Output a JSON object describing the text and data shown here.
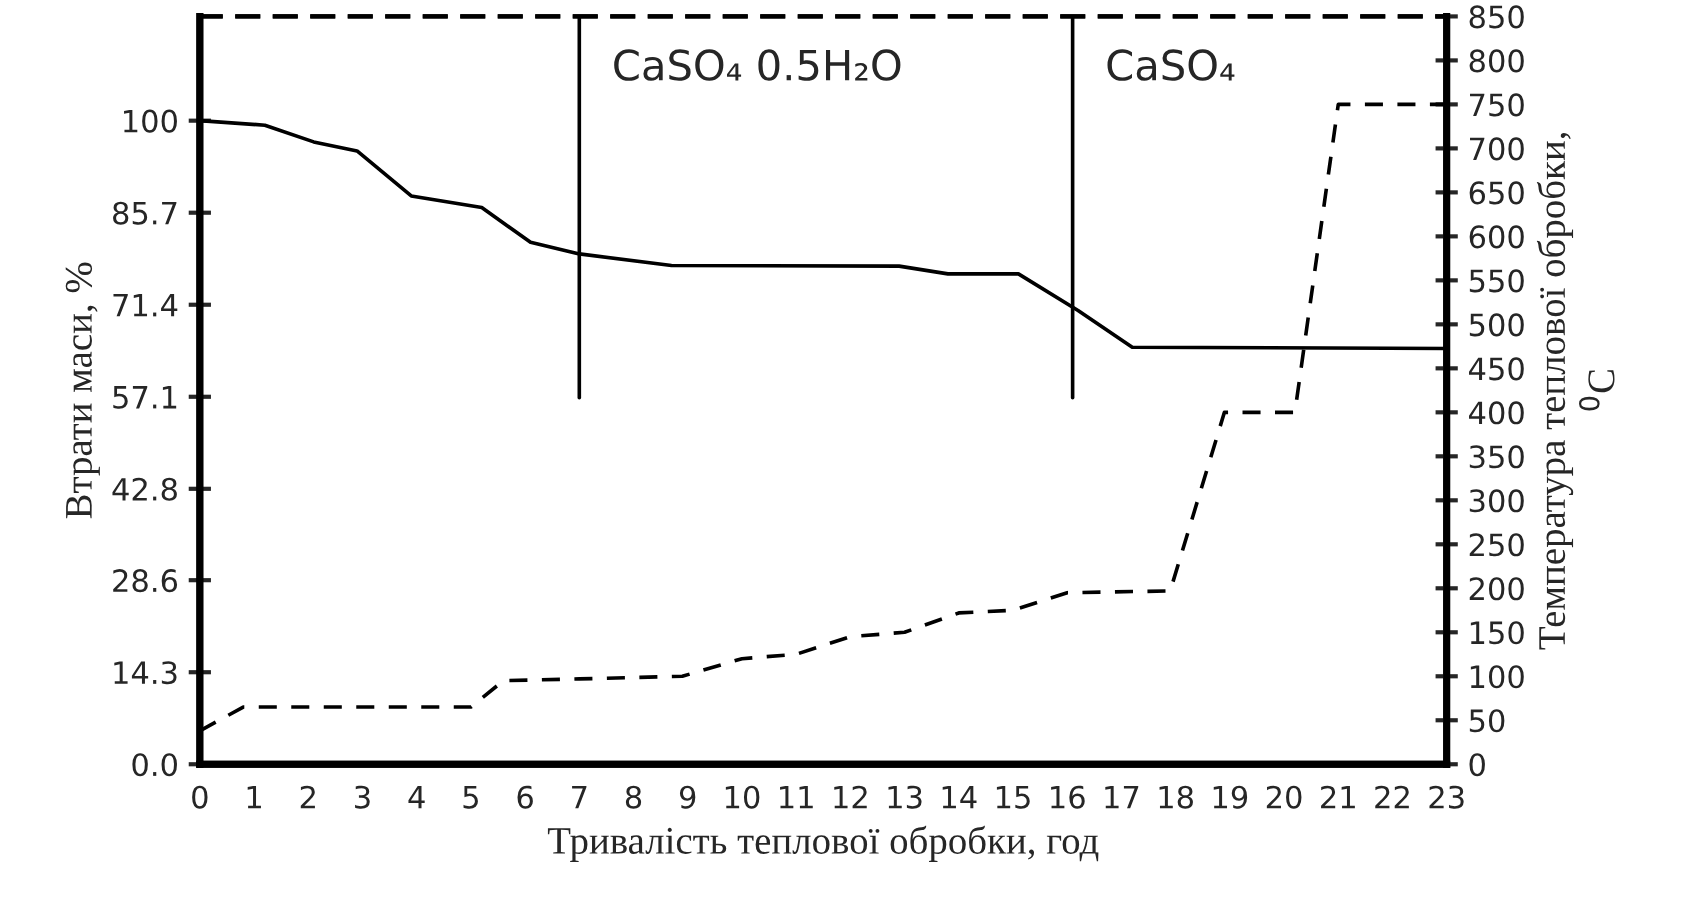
{
  "chart_data": {
    "type": "line",
    "xlabel": "Тривалість теплової обробки, год",
    "ylabel": "Втрати маси, %",
    "y2label": "Температура теплової обробки,\n$^{0}$C",
    "xlim": [
      0,
      23
    ],
    "xticks": [
      0,
      1,
      2,
      3,
      4,
      5,
      6,
      7,
      8,
      9,
      10,
      11,
      12,
      13,
      14,
      15,
      16,
      17,
      18,
      19,
      20,
      21,
      22,
      23
    ],
    "ylim": [
      0,
      116.2
    ],
    "yticks": [
      {
        "value": 0,
        "label": "0.0"
      },
      14.3,
      28.6,
      42.8,
      57.1,
      71.4,
      85.7,
      100
    ],
    "y2lim": [
      0,
      850
    ],
    "y2ticks": [
      0,
      50,
      100,
      150,
      200,
      250,
      300,
      350,
      400,
      450,
      500,
      550,
      600,
      650,
      700,
      750,
      800,
      850
    ],
    "grid": false,
    "legend": false,
    "marker": "none",
    "series": [
      {
        "color": "#000000",
        "line_style": "solid",
        "x": [
          0,
          1.2,
          2.1,
          2.9,
          3.9,
          5.2,
          6.1,
          7,
          8.7,
          12.9,
          13.8,
          15.1,
          16.2,
          17.2,
          23
        ],
        "values": [
          100,
          99.3,
          96.7,
          95.3,
          88.3,
          86.5,
          81.1,
          79.3,
          77.5,
          77.4,
          76.2,
          76.2,
          70.5,
          64.8,
          64.6
        ]
      },
      {
        "color": "#000000",
        "line_style": "dashed",
        "axis": "y2",
        "x": [
          0,
          0.8,
          5,
          5.6,
          7,
          8.9,
          10,
          11,
          12,
          13,
          14,
          15,
          16,
          17.9,
          18.9,
          20.2,
          21,
          23
        ],
        "values": [
          38,
          65,
          65,
          95,
          97,
          100,
          120,
          125,
          145,
          150,
          172,
          175,
          195,
          197,
          400,
          400,
          750,
          750
        ]
      }
    ],
    "ref_lines": [
      {
        "axis": "x",
        "value": 7,
        "label": "CaSO₄ 0.5H₂O",
        "color": "#000000"
      },
      {
        "axis": "x",
        "value": 16.1,
        "label": "CaSO₄",
        "color": "#000000"
      }
    ]
  }
}
